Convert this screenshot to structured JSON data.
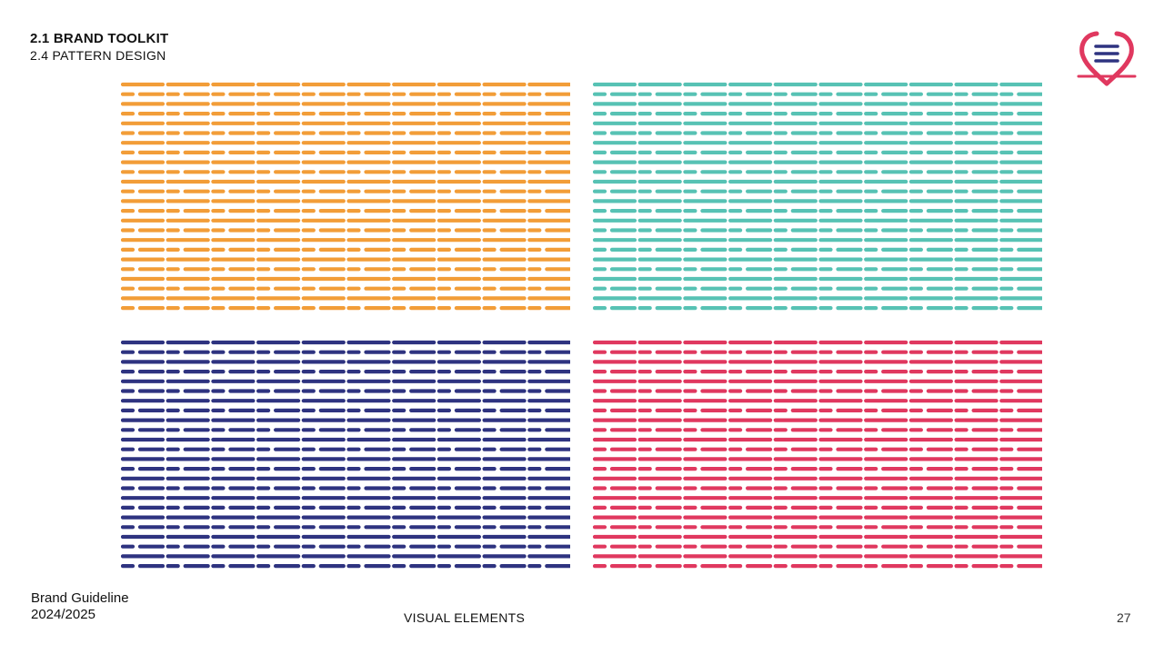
{
  "header": {
    "section_title": "2.1 BRAND TOOLKIT",
    "section_subtitle": "2.4 PATTERN DESIGN"
  },
  "logo": {
    "icon": "heart-list-icon",
    "colors": [
      "#e0385f",
      "#2e3380"
    ]
  },
  "patterns": [
    {
      "id": "orange",
      "color": "#f29d38"
    },
    {
      "id": "teal",
      "color": "#57c2b4"
    },
    {
      "id": "navy",
      "color": "#2e3380"
    },
    {
      "id": "red",
      "color": "#e0385f"
    }
  ],
  "footer": {
    "doc_title": "Brand Guideline",
    "doc_year": "2024/2025",
    "chapter": "VISUAL ELEMENTS",
    "page_number": "27"
  }
}
